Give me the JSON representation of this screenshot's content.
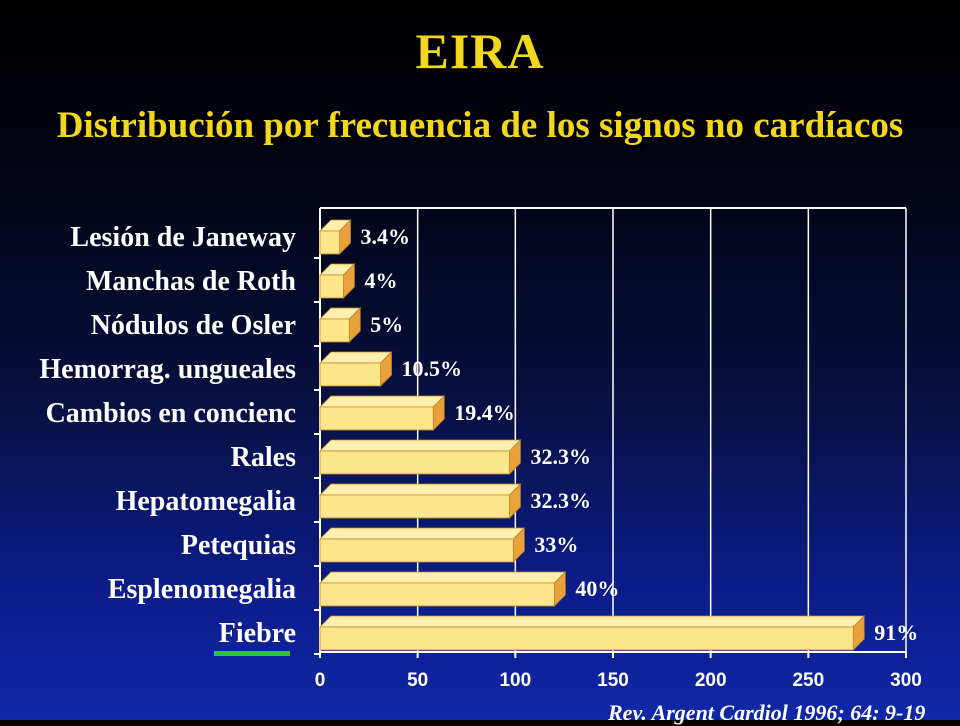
{
  "header": {
    "title": "EIRA",
    "subtitle": "Distribución por frecuencia de los signos no cardíacos"
  },
  "source": "Rev. Argent Cardiol 1996; 64: 9-19",
  "colors": {
    "background_top": "#000000",
    "background_bottom": "#1028a8",
    "title": "#f2d71c",
    "bar_front": "#fde58c",
    "bar_top": "#fff0b0",
    "bar_side": "#e9a23a",
    "gridline": "#ffffff",
    "marker": "#2fc634"
  },
  "chart_data": {
    "type": "bar",
    "orientation": "horizontal",
    "categories": [
      "Lesión de Janeway",
      "Manchas de Roth",
      "Nódulos de Osler",
      "Hemorrag. ungueales",
      "Cambios en concienc",
      "Rales",
      "Hepatomegalia",
      "Petequias",
      "Esplenomegalia",
      "Fiebre"
    ],
    "values": [
      10,
      12,
      15,
      31,
      58,
      97,
      97,
      99,
      120,
      273
    ],
    "data_labels": [
      "3.4%",
      "4%",
      "5%",
      "10.5%",
      "19.4%",
      "32.3%",
      "32.3%",
      "33%",
      "40%",
      "91%"
    ],
    "xlim": [
      0,
      300
    ],
    "xticks": [
      0,
      50,
      100,
      150,
      200,
      250,
      300
    ],
    "grid": true,
    "legend": "none",
    "style": "3d"
  }
}
